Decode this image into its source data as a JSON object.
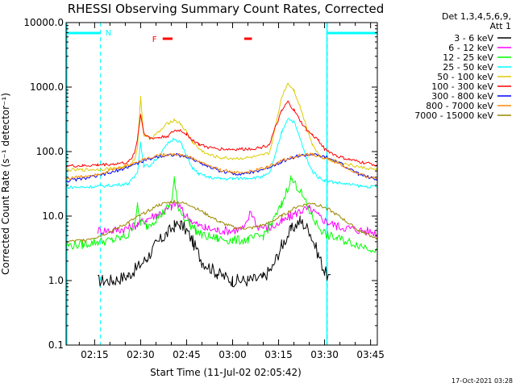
{
  "chart_data": {
    "type": "line",
    "title": "RHESSI Observing Summary Count Rates, Corrected",
    "xlabel": "Start Time (11-Jul-02 02:05:42)",
    "ylabel": "Corrected Count Rate (s⁻¹ detector⁻¹)",
    "yscale": "log",
    "ylim": [
      0.1,
      10000
    ],
    "xlim_minutes": [
      125.7,
      227.2
    ],
    "x_ticks": [
      {
        "minute": 135,
        "label": "02:15"
      },
      {
        "minute": 150,
        "label": "02:30"
      },
      {
        "minute": 165,
        "label": "02:45"
      },
      {
        "minute": 180,
        "label": "03:00"
      },
      {
        "minute": 195,
        "label": "03:15"
      },
      {
        "minute": 210,
        "label": "03:30"
      },
      {
        "minute": 225,
        "label": "03:45"
      }
    ],
    "y_ticks": [
      {
        "value": 0.1,
        "label": "0.1"
      },
      {
        "value": 1,
        "label": "1.0"
      },
      {
        "value": 10,
        "label": "10.0"
      },
      {
        "value": 100,
        "label": "100.0"
      },
      {
        "value": 1000,
        "label": "1000.0"
      },
      {
        "value": 10000,
        "label": "10000.0"
      }
    ],
    "legend_header": [
      "Det 1,3,4,5,6,9,",
      "Att 1"
    ],
    "series": [
      {
        "name": "3 - 6 keV",
        "color": "#000000",
        "x": [
          125.7,
          131,
          136,
          141,
          146,
          149,
          152,
          155,
          158,
          161,
          163,
          165,
          167,
          170,
          175,
          180,
          185,
          190,
          193,
          196,
          199,
          202,
          205,
          208,
          210,
          212
        ],
        "y": [
          null,
          null,
          1.0,
          1.0,
          1.2,
          1.6,
          2.2,
          3.6,
          5.0,
          7.0,
          7.5,
          6.0,
          4.0,
          2.0,
          1.3,
          1.0,
          1.0,
          1.1,
          1.6,
          3.5,
          6.0,
          8.5,
          6.0,
          2.5,
          1.4,
          1.0
        ]
      },
      {
        "name": "6 - 12 keV",
        "color": "#ff00ff",
        "x": [
          125.7,
          131,
          136,
          141,
          146,
          149,
          152,
          155,
          158,
          160,
          162,
          164,
          166,
          168,
          171,
          175,
          180,
          184,
          186,
          188,
          192,
          196,
          199,
          202,
          205,
          208,
          211,
          214,
          218,
          222,
          227.2
        ],
        "y": [
          null,
          null,
          6.0,
          6.0,
          6.5,
          7.5,
          9.0,
          10.5,
          12.0,
          14.0,
          16.0,
          11.0,
          9.0,
          7.5,
          6.5,
          6.0,
          6.0,
          6.5,
          12.0,
          7.0,
          6.5,
          8.0,
          10.0,
          12.0,
          13.0,
          10.0,
          8.0,
          7.0,
          6.5,
          6.0,
          5.5
        ]
      },
      {
        "name": "12 - 25 keV",
        "color": "#00ff00",
        "x": [
          125.7,
          131,
          136,
          141,
          146,
          148,
          149,
          150,
          152,
          155,
          158,
          160,
          161,
          162,
          164,
          166,
          168,
          170,
          175,
          180,
          185,
          190,
          193,
          196,
          199,
          202,
          205,
          207,
          209,
          211,
          214,
          218,
          222,
          227.2
        ],
        "y": [
          3.5,
          3.6,
          4.0,
          4.2,
          5.0,
          8.0,
          14.0,
          8.0,
          7.0,
          9.0,
          12.0,
          16.0,
          38.0,
          15.0,
          10.0,
          7.5,
          6.0,
          5.0,
          4.5,
          4.2,
          4.3,
          5.0,
          8.0,
          15.0,
          38.0,
          25.0,
          12.0,
          8.0,
          6.0,
          5.0,
          4.5,
          4.0,
          3.5,
          3.0
        ]
      },
      {
        "name": "25 - 50 keV",
        "color": "#00ffff",
        "x": [
          125.7,
          131,
          136,
          141,
          146,
          148,
          149,
          150,
          151,
          153,
          156,
          159,
          161,
          163,
          165,
          167,
          169,
          172,
          176,
          180,
          185,
          189,
          192,
          194,
          196,
          198,
          200,
          202,
          204,
          206,
          208,
          210,
          214,
          218,
          222,
          227.2
        ],
        "y": [
          28,
          28,
          29,
          30,
          32,
          40,
          50,
          140,
          60,
          60,
          85,
          135,
          160,
          140,
          85,
          55,
          45,
          40,
          38,
          38,
          39,
          40,
          45,
          90,
          200,
          330,
          290,
          160,
          80,
          50,
          40,
          36,
          33,
          31,
          29,
          28
        ]
      },
      {
        "name": "50 - 100 keV",
        "color": "#ddcc00",
        "x": [
          125.7,
          131,
          136,
          141,
          146,
          148,
          149,
          150,
          151,
          153,
          156,
          159,
          161,
          163,
          165,
          167,
          169,
          172,
          176,
          180,
          185,
          189,
          192,
          194,
          196,
          198,
          200,
          202,
          204,
          206,
          208,
          210,
          214,
          218,
          222,
          227.2
        ],
        "y": [
          52,
          52,
          53,
          55,
          58,
          75,
          120,
          700,
          180,
          160,
          200,
          280,
          310,
          270,
          200,
          140,
          110,
          90,
          80,
          78,
          80,
          85,
          95,
          250,
          700,
          1150,
          900,
          500,
          250,
          130,
          90,
          80,
          70,
          62,
          57,
          52
        ]
      },
      {
        "name": "100 - 300 keV",
        "color": "#ff0000",
        "x": [
          125.7,
          131,
          136,
          141,
          146,
          148,
          149,
          150,
          151,
          153,
          156,
          159,
          161,
          163,
          165,
          167,
          169,
          172,
          176,
          180,
          185,
          189,
          192,
          194,
          196,
          198,
          200,
          202,
          204,
          206,
          208,
          210,
          214,
          218,
          222,
          227.2
        ],
        "y": [
          60,
          60,
          62,
          64,
          68,
          95,
          160,
          380,
          200,
          160,
          165,
          175,
          210,
          215,
          185,
          150,
          130,
          115,
          110,
          108,
          110,
          115,
          130,
          240,
          420,
          590,
          440,
          300,
          220,
          180,
          150,
          110,
          85,
          75,
          68,
          62
        ]
      },
      {
        "name": "300 - 800 keV",
        "color": "#0000ff",
        "x": [
          125.7,
          131,
          136,
          141,
          146,
          151,
          156,
          161,
          166,
          171,
          176,
          181,
          186,
          191,
          196,
          201,
          206,
          211,
          216,
          221,
          227.2
        ],
        "y": [
          35,
          38,
          42,
          48,
          58,
          72,
          85,
          90,
          80,
          62,
          50,
          45,
          47,
          55,
          70,
          85,
          90,
          80,
          62,
          45,
          36
        ]
      },
      {
        "name": "800 - 7000 keV",
        "color": "#ff8800",
        "x": [
          125.7,
          131,
          136,
          141,
          146,
          151,
          156,
          161,
          166,
          171,
          176,
          181,
          186,
          191,
          196,
          201,
          206,
          211,
          216,
          221,
          227.2
        ],
        "y": [
          38,
          41,
          45,
          52,
          62,
          76,
          88,
          92,
          82,
          64,
          52,
          47,
          49,
          57,
          72,
          86,
          90,
          78,
          60,
          44,
          38
        ]
      },
      {
        "name": "7000 - 15000 keV",
        "color": "#998800",
        "x": [
          125.7,
          131,
          136,
          141,
          146,
          151,
          156,
          161,
          166,
          171,
          176,
          181,
          186,
          191,
          196,
          201,
          206,
          211,
          216,
          221,
          227.2
        ],
        "y": [
          4.0,
          4.2,
          4.8,
          6.0,
          8.0,
          11.0,
          15.0,
          17.0,
          15.0,
          11.0,
          8.0,
          6.5,
          6.5,
          7.5,
          10.0,
          14.0,
          16.0,
          13.0,
          9.0,
          6.0,
          4.5
        ]
      }
    ],
    "night_intervals": [
      {
        "label": "N",
        "start": 125.7,
        "end": 136.9
      },
      {
        "label": "",
        "start": 210.9,
        "end": 227.2
      }
    ],
    "saa_intervals": [],
    "flare_intervals": [
      {
        "label": "F",
        "start": 157.2,
        "end": 160.4
      },
      {
        "label": "",
        "start": 183.8,
        "end": 186.3
      }
    ],
    "timestamp": "17-Oct-2021 03:28"
  },
  "colors": {
    "night_marker": "#00ffff",
    "flare_marker": "#ff0000",
    "axis": "#000000"
  }
}
